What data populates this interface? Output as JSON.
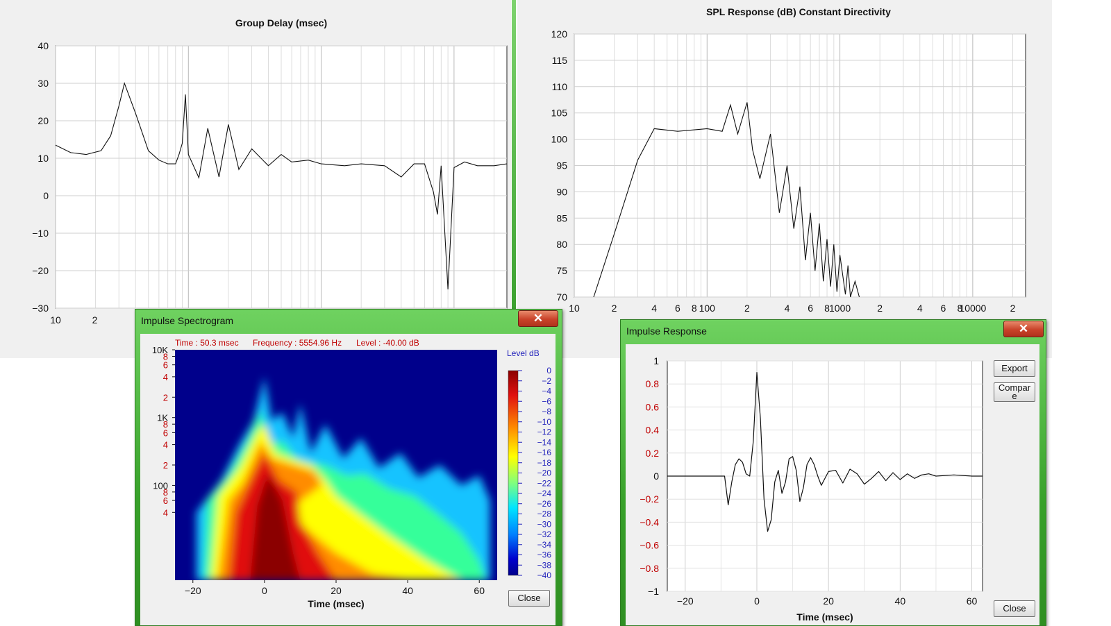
{
  "group_delay": {
    "title": "Group Delay (msec)",
    "y_ticks": [
      "40",
      "30",
      "20",
      "10",
      "0",
      "−10",
      "−20",
      "−30"
    ],
    "x_ticks": [
      "10",
      "2"
    ]
  },
  "spl": {
    "title": "SPL Response (dB)   Constant Directivity",
    "y_ticks": [
      "120",
      "115",
      "110",
      "105",
      "100",
      "95",
      "90",
      "85",
      "80",
      "75",
      "70"
    ],
    "x_ticks": [
      "10",
      "2",
      "4",
      "6",
      "8",
      "100",
      "2",
      "4",
      "6",
      "8",
      "1000",
      "2",
      "4",
      "6",
      "8",
      "10000",
      "2"
    ]
  },
  "spectrogram": {
    "window_title": "Impulse Spectrogram",
    "close_glyph": "✕",
    "info_time": "Time : 50.3 msec",
    "info_freq": "Frequency : 5554.96 Hz",
    "info_level": "Level : -40.00 dB",
    "legend_title": "Level  dB",
    "legend_ticks": [
      "0",
      "−2",
      "−4",
      "−6",
      "−8",
      "−10",
      "−12",
      "−14",
      "−16",
      "−18",
      "−20",
      "−22",
      "−24",
      "−26",
      "−28",
      "−30",
      "−32",
      "−34",
      "−36",
      "−38",
      "−40"
    ],
    "y_ticks": [
      "10K",
      "8",
      "6",
      "4",
      "2",
      "1K",
      "8",
      "6",
      "4",
      "2",
      "100",
      "8",
      "6",
      "4"
    ],
    "x_ticks": [
      "−20",
      "0",
      "20",
      "40",
      "60"
    ],
    "x_label": "Time (msec)",
    "close_button": "Close",
    "colors": {
      "background": "#00008b",
      "high": "#8b0000",
      "mid": "#ffff00",
      "low": "#00bfff"
    }
  },
  "impulse": {
    "window_title": "Impulse Response",
    "close_glyph": "✕",
    "export_button": "Export",
    "compare_button": "Compar\ne",
    "close_button": "Close",
    "y_ticks": [
      "1",
      "0.8",
      "0.6",
      "0.4",
      "0.2",
      "0",
      "−0.2",
      "−0.4",
      "−0.6",
      "−0.8",
      "−1"
    ],
    "x_ticks": [
      "−20",
      "0",
      "20",
      "40",
      "60"
    ],
    "x_label": "Time (msec)"
  },
  "chart_data": [
    {
      "type": "line",
      "title": "Group Delay (msec)",
      "xlabel": "",
      "ylabel": "",
      "x_scale": "log",
      "xlim": [
        10,
        25000
      ],
      "ylim": [
        -30,
        40
      ],
      "grid": true,
      "series": [
        {
          "x": [
            10,
            13,
            17,
            22,
            26,
            30,
            33,
            40,
            50,
            60,
            70,
            80,
            85,
            90,
            95,
            100,
            120,
            140,
            170,
            200,
            240,
            300,
            400,
            500,
            600,
            800,
            1000,
            1500,
            2000,
            3000,
            4000,
            5000,
            6000,
            7000,
            7500,
            8000,
            9000,
            10000,
            12000,
            15000,
            20000,
            25000
          ],
          "y": [
            13.5,
            11.5,
            11,
            12,
            16,
            24,
            30,
            22,
            12,
            9.5,
            8.5,
            8.5,
            11,
            14,
            27,
            11,
            4.8,
            18,
            5,
            19,
            7,
            12.5,
            8,
            11,
            9,
            9.5,
            8.5,
            8,
            8.5,
            8,
            5,
            8.5,
            8.5,
            1,
            -5,
            8,
            -25,
            7.5,
            9,
            8,
            8,
            8.5
          ]
        }
      ]
    },
    {
      "type": "line",
      "title": "SPL Response (dB)   Constant Directivity",
      "xlabel": "",
      "ylabel": "",
      "x_scale": "log",
      "xlim": [
        10,
        25000
      ],
      "ylim": [
        70,
        120
      ],
      "grid": true,
      "series": [
        {
          "x": [
            14,
            20,
            30,
            40,
            60,
            100,
            130,
            150,
            170,
            200,
            220,
            250,
            300,
            350,
            400,
            450,
            500,
            550,
            600,
            650,
            700,
            750,
            800,
            850,
            900,
            950,
            1000,
            1100,
            1150,
            1200,
            1300,
            1400
          ],
          "y": [
            70,
            82,
            96,
            102,
            101.5,
            102,
            101.5,
            106.5,
            101,
            107,
            98,
            92.5,
            101,
            86,
            95,
            83,
            91,
            77,
            86,
            75,
            84,
            73,
            81,
            72,
            80,
            71,
            78,
            70.5,
            76,
            70,
            73,
            70
          ]
        }
      ]
    },
    {
      "type": "heatmap",
      "title": "Impulse Spectrogram",
      "xlabel": "Time (msec)",
      "ylabel": "",
      "xlim": [
        -25,
        65
      ],
      "ylim": [
        4,
        10000
      ],
      "y_scale": "log",
      "colorbar": {
        "label": "Level  dB",
        "range": [
          -40,
          0
        ]
      },
      "values_note": "Energy concentrated near t=0 from 4 Hz to ~3 kHz with decaying lobes every ~10 msec"
    },
    {
      "type": "line",
      "title": "Impulse Response",
      "xlabel": "Time (msec)",
      "ylabel": "",
      "xlim": [
        -25,
        63
      ],
      "ylim": [
        -1,
        1
      ],
      "grid": true,
      "series": [
        {
          "x": [
            -25,
            -9,
            -8,
            -7,
            -6,
            -5,
            -4,
            -3,
            -2,
            -1,
            0,
            1,
            2,
            3,
            4,
            5,
            6,
            7,
            8,
            9,
            10,
            11,
            12,
            13,
            14,
            15,
            16,
            17,
            18,
            20,
            22,
            24,
            26,
            28,
            30,
            32,
            34,
            36,
            38,
            40,
            42,
            44,
            46,
            48,
            50,
            55,
            60,
            63
          ],
          "y": [
            0,
            0,
            -0.25,
            -0.05,
            0.1,
            0.15,
            0.12,
            0.02,
            0,
            0.3,
            0.9,
            0.5,
            -0.2,
            -0.48,
            -0.38,
            -0.05,
            0.05,
            -0.15,
            -0.05,
            0.15,
            0.17,
            0.05,
            -0.22,
            -0.1,
            0.1,
            0.16,
            0.1,
            0,
            -0.08,
            0.04,
            0.05,
            -0.06,
            0.06,
            0.02,
            -0.07,
            -0.02,
            0.04,
            -0.04,
            0.03,
            -0.03,
            0.02,
            -0.02,
            0.01,
            0.02,
            0,
            0.01,
            0,
            0
          ]
        }
      ]
    }
  ]
}
